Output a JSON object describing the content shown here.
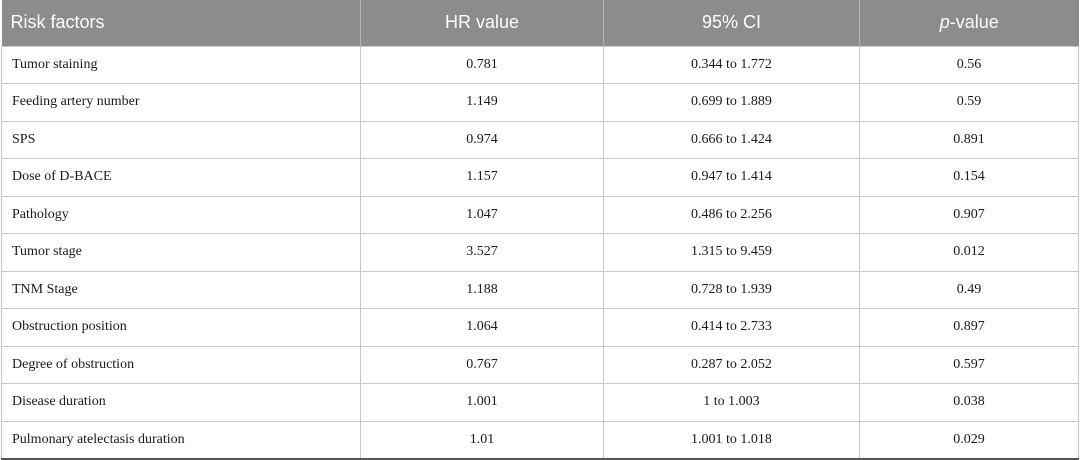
{
  "table": {
    "headers": {
      "risk_factors": "Risk factors",
      "hr_value": "HR value",
      "ci": "95% CI",
      "p_prefix": "p",
      "p_suffix": "-value"
    },
    "rows": [
      {
        "factor": "Tumor staining",
        "hr": "0.781",
        "ci": "0.344 to 1.772",
        "p": "0.56"
      },
      {
        "factor": "Feeding artery number",
        "hr": "1.149",
        "ci": "0.699 to 1.889",
        "p": "0.59"
      },
      {
        "factor": "SPS",
        "hr": "0.974",
        "ci": "0.666 to 1.424",
        "p": "0.891"
      },
      {
        "factor": "Dose of D-BACE",
        "hr": "1.157",
        "ci": "0.947 to 1.414",
        "p": "0.154"
      },
      {
        "factor": "Pathology",
        "hr": "1.047",
        "ci": "0.486 to 2.256",
        "p": "0.907"
      },
      {
        "factor": "Tumor stage",
        "hr": "3.527",
        "ci": "1.315 to 9.459",
        "p": "0.012"
      },
      {
        "factor": "TNM Stage",
        "hr": "1.188",
        "ci": "0.728 to 1.939",
        "p": "0.49"
      },
      {
        "factor": "Obstruction position",
        "hr": "1.064",
        "ci": "0.414 to 2.733",
        "p": "0.897"
      },
      {
        "factor": "Degree of obstruction",
        "hr": "0.767",
        "ci": "0.287 to 2.052",
        "p": "0.597"
      },
      {
        "factor": "Disease duration",
        "hr": "1.001",
        "ci": "1 to 1.003",
        "p": "0.038"
      },
      {
        "factor": "Pulmonary atelectasis duration",
        "hr": "1.01",
        "ci": "1.001 to 1.018",
        "p": "0.029"
      }
    ]
  }
}
